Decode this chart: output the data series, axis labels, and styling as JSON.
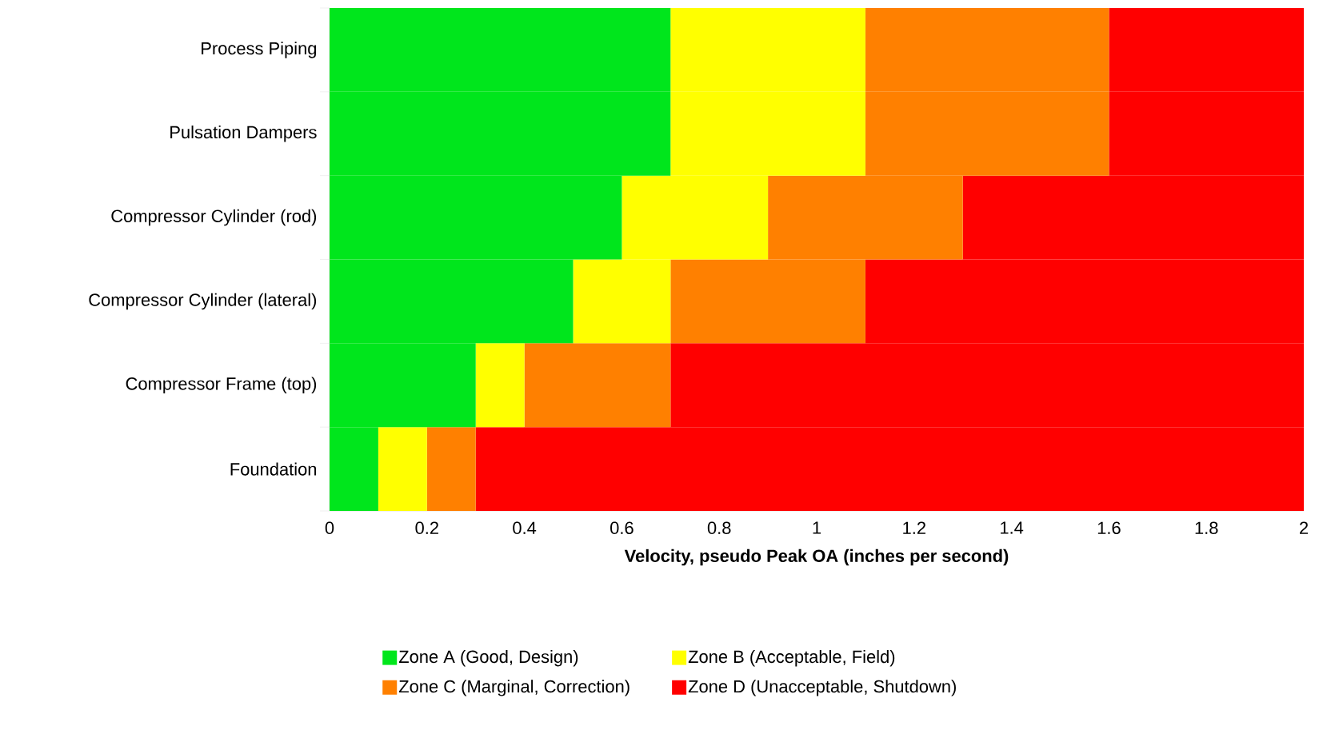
{
  "chart_data": {
    "type": "bar",
    "orientation": "horizontal",
    "stacked": true,
    "categories": [
      "Process Piping",
      "Pulsation Dampers",
      "Compressor Cylinder (rod)",
      "Compressor Cylinder (lateral)",
      "Compressor Frame (top)",
      "Foundation"
    ],
    "series": [
      {
        "name": "Zone A (Good, Design)",
        "color": "#00e61c",
        "values": [
          0.7,
          0.7,
          0.6,
          0.5,
          0.3,
          0.1
        ]
      },
      {
        "name": "Zone B (Acceptable, Field)",
        "color": "#ffff00",
        "values": [
          0.4,
          0.4,
          0.3,
          0.2,
          0.1,
          0.1
        ]
      },
      {
        "name": "Zone C (Marginal, Correction)",
        "color": "#ff8000",
        "values": [
          0.5,
          0.5,
          0.4,
          0.4,
          0.3,
          0.1
        ]
      },
      {
        "name": "Zone D (Unacceptable, Shutdown)",
        "color": "#ff0000",
        "values": [
          0.4,
          0.4,
          0.7,
          0.9,
          1.3,
          1.7
        ]
      }
    ],
    "xlabel": "Velocity, pseudo Peak OA (inches per second)",
    "xlim": [
      0,
      2
    ],
    "xticks": [
      0,
      0.2,
      0.4,
      0.6,
      0.8,
      1,
      1.2,
      1.4,
      1.6,
      1.8,
      2
    ],
    "grid": false,
    "legend": "bottom"
  }
}
